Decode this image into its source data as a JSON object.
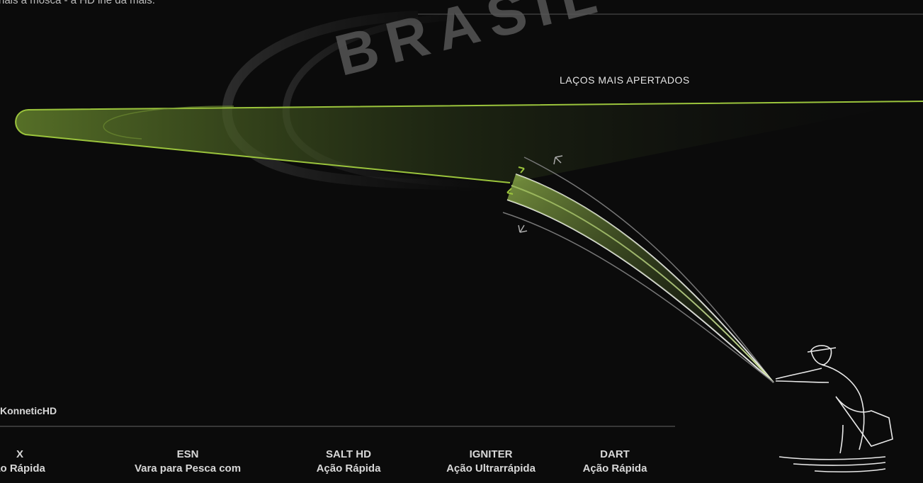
{
  "header_text": "nais a mosca - a HD lhe dá mais.",
  "watermark": "BRASIL",
  "annotation": "LAÇOS MAIS APERTADOS",
  "section_title": "KonneticHD",
  "columns": [
    {
      "name": "X",
      "action": "ão Rápida"
    },
    {
      "name": "ESN",
      "action": "Vara para Pesca com"
    },
    {
      "name": "SALT HD",
      "action": "Ação Rápida"
    },
    {
      "name": "IGNITER",
      "action": "Ação Ultrarrápida"
    },
    {
      "name": "DART",
      "action": "Ação Rápida"
    }
  ]
}
